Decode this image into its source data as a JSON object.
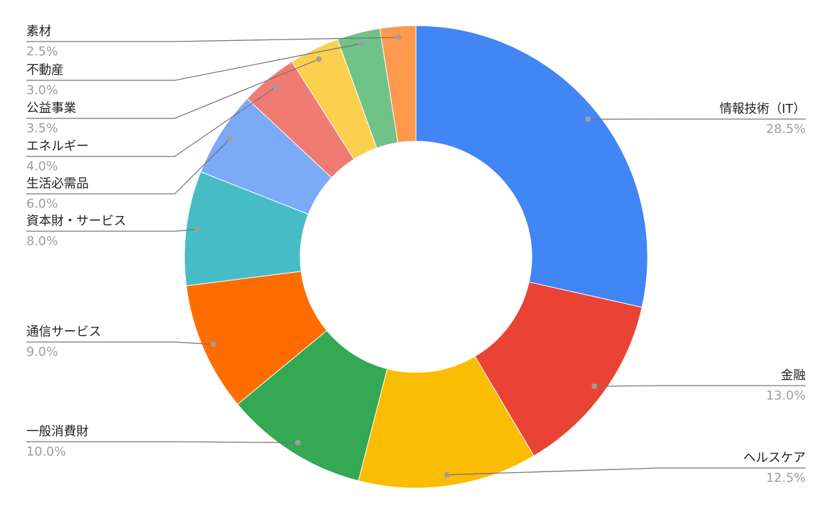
{
  "chart_data": {
    "type": "pie",
    "donut": true,
    "categories": [
      "情報技術（IT）",
      "金融",
      "ヘルスケア",
      "一般消費財",
      "通信サービス",
      "資本財・サービス",
      "生活必需品",
      "エネルギー",
      "公益事業",
      "不動産",
      "素材"
    ],
    "values": [
      28.5,
      13.0,
      12.5,
      10.0,
      9.0,
      8.0,
      6.0,
      4.0,
      3.5,
      3.0,
      2.5
    ],
    "value_labels": [
      "28.5%",
      "13.0%",
      "12.5%",
      "10.0%",
      "9.0%",
      "8.0%",
      "6.0%",
      "4.0%",
      "3.5%",
      "3.0%",
      "2.5%"
    ],
    "colors": [
      "#4285f4",
      "#ea4335",
      "#fbbc04",
      "#34a853",
      "#ff6d01",
      "#46bdc6",
      "#7baaf7",
      "#f07b72",
      "#fcd04f",
      "#71c287",
      "#ff994d"
    ]
  }
}
